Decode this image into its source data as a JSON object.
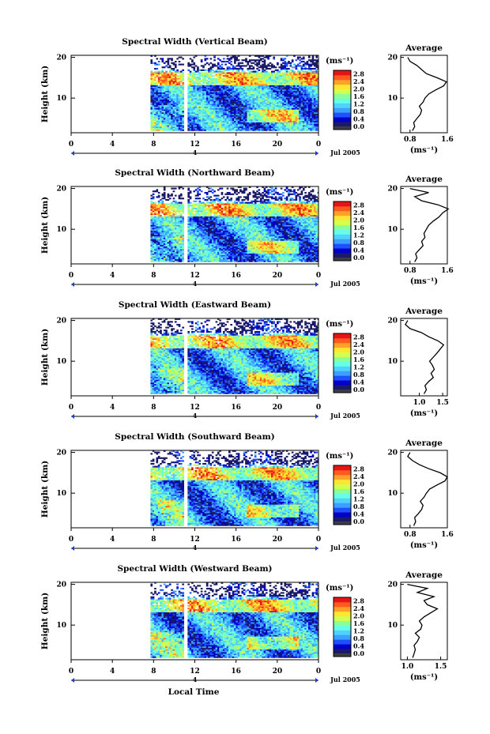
{
  "figure": {
    "x_axis_label": "Local Time",
    "date_label": "Jul 2005",
    "day_label": "4",
    "units_label": "(ms⁻¹)",
    "average_title": "Average",
    "height_label": "Height (km)"
  },
  "colors": {
    "colormap": [
      "#1a1a66",
      "#0000c8",
      "#1e50ff",
      "#3ca0ff",
      "#50d2ff",
      "#64ffe6",
      "#8cff96",
      "#d2ff50",
      "#ffe632",
      "#ffa028",
      "#ff5a1e",
      "#e61414"
    ],
    "bar_bottom": "#3c3c46",
    "day_marker": "#1e3cc8"
  },
  "chart_data": [
    {
      "type": "heatmap",
      "title": "Spectral Width (Vertical Beam)",
      "xlabel": "",
      "ylabel": "Height (km)",
      "xlim": [
        0,
        24
      ],
      "ylim": [
        1.5,
        20.5
      ],
      "x_ticks": [
        "0",
        "4",
        "8",
        "12",
        "16",
        "20",
        "0"
      ],
      "y_ticks": [
        "20",
        "10"
      ],
      "data_start_hour": 7.7,
      "data_gap_hours": [
        10.9,
        11.2
      ],
      "colorbar": {
        "label": "(ms⁻¹)",
        "ticks": [
          "0.0",
          "0.4",
          "0.8",
          "1.2",
          "1.6",
          "2.0",
          "2.4",
          "2.8"
        ],
        "range": [
          0,
          3.0
        ]
      },
      "profile": {
        "title": "Average",
        "xlim": [
          0.6,
          1.6
        ],
        "x_ticks": [
          "0.8",
          "1.6"
        ],
        "xlabel": "(ms⁻¹)",
        "heights": [
          2,
          3,
          4,
          5,
          6,
          7,
          8,
          9,
          10,
          11,
          12,
          13,
          14,
          15,
          16,
          17,
          18,
          19,
          20
        ],
        "values": [
          0.85,
          0.9,
          0.88,
          0.95,
          1.02,
          1.05,
          1.0,
          1.08,
          1.12,
          1.2,
          1.35,
          1.52,
          1.58,
          1.38,
          1.15,
          1.05,
          0.95,
          0.8,
          0.75
        ]
      }
    },
    {
      "type": "heatmap",
      "title": "Spectral Width (Northward Beam)",
      "xlabel": "",
      "ylabel": "Height (km)",
      "xlim": [
        0,
        24
      ],
      "ylim": [
        1.5,
        20.5
      ],
      "x_ticks": [
        "0",
        "4",
        "8",
        "12",
        "16",
        "20",
        "0"
      ],
      "y_ticks": [
        "20",
        "10"
      ],
      "data_start_hour": 7.7,
      "data_gap_hours": [
        10.9,
        11.2
      ],
      "colorbar": {
        "label": "(ms⁻¹)",
        "ticks": [
          "0.0",
          "0.4",
          "0.8",
          "1.2",
          "1.6",
          "2.0",
          "2.4",
          "2.8"
        ],
        "range": [
          0,
          3.0
        ]
      },
      "profile": {
        "title": "Average",
        "xlim": [
          0.6,
          1.6
        ],
        "x_ticks": [
          "0.8",
          "1.6"
        ],
        "xlabel": "(ms⁻¹)",
        "heights": [
          2,
          3,
          4,
          5,
          6,
          7,
          8,
          9,
          10,
          11,
          12,
          13,
          14,
          15,
          16,
          17,
          18,
          19,
          20
        ],
        "values": [
          0.9,
          0.95,
          0.92,
          1.0,
          1.08,
          1.05,
          1.12,
          1.1,
          1.15,
          1.2,
          1.3,
          1.42,
          1.5,
          1.62,
          1.4,
          1.05,
          0.9,
          1.2,
          0.8
        ]
      }
    },
    {
      "type": "heatmap",
      "title": "Spectral Width (Eastward Beam)",
      "xlabel": "",
      "ylabel": "Height (km)",
      "xlim": [
        0,
        24
      ],
      "ylim": [
        1.5,
        20.5
      ],
      "x_ticks": [
        "0",
        "4",
        "8",
        "12",
        "16",
        "20",
        "0"
      ],
      "y_ticks": [
        "20",
        "10"
      ],
      "data_start_hour": 7.7,
      "data_gap_hours": [
        10.9,
        11.2
      ],
      "colorbar": {
        "label": "(ms⁻¹)",
        "ticks": [
          "0.0",
          "0.4",
          "0.8",
          "1.2",
          "1.6",
          "2.0",
          "2.4",
          "2.8"
        ],
        "range": [
          0,
          3.0
        ]
      },
      "profile": {
        "title": "Average",
        "xlim": [
          0.6,
          1.6
        ],
        "x_ticks": [
          "1.0",
          "1.5"
        ],
        "xlabel": "(ms⁻¹)",
        "heights": [
          2,
          3,
          4,
          5,
          6,
          7,
          8,
          9,
          10,
          11,
          12,
          13,
          14,
          15,
          16,
          17,
          18,
          19,
          20
        ],
        "values": [
          1.1,
          1.15,
          1.12,
          1.2,
          1.3,
          1.25,
          1.32,
          1.28,
          1.22,
          1.3,
          1.38,
          1.45,
          1.52,
          1.4,
          1.2,
          1.05,
          0.8,
          0.7,
          0.75
        ]
      }
    },
    {
      "type": "heatmap",
      "title": "Spectral Width (Southward Beam)",
      "xlabel": "",
      "ylabel": "Height (km)",
      "xlim": [
        0,
        24
      ],
      "ylim": [
        1.5,
        20.5
      ],
      "x_ticks": [
        "0",
        "4",
        "8",
        "12",
        "16",
        "20",
        "0"
      ],
      "y_ticks": [
        "20",
        "10"
      ],
      "data_start_hour": 7.7,
      "data_gap_hours": [
        10.9,
        11.2
      ],
      "colorbar": {
        "label": "(ms⁻¹)",
        "ticks": [
          "0.0",
          "0.4",
          "0.8",
          "1.2",
          "1.6",
          "2.0",
          "2.4",
          "2.8"
        ],
        "range": [
          0,
          3.0
        ]
      },
      "profile": {
        "title": "Average",
        "xlim": [
          0.6,
          1.6
        ],
        "x_ticks": [
          "0.8",
          "1.6"
        ],
        "xlabel": "(ms⁻¹)",
        "heights": [
          2,
          3,
          4,
          5,
          6,
          7,
          8,
          9,
          10,
          11,
          12,
          13,
          14,
          15,
          16,
          17,
          18,
          19,
          20
        ],
        "values": [
          0.88,
          0.92,
          0.9,
          0.98,
          1.05,
          1.08,
          1.02,
          1.1,
          1.15,
          1.22,
          1.38,
          1.55,
          1.6,
          1.45,
          1.2,
          1.0,
          0.85,
          0.75,
          0.8
        ]
      }
    },
    {
      "type": "heatmap",
      "title": "Spectral Width (Westward Beam)",
      "xlabel": "Local Time",
      "ylabel": "Height (km)",
      "xlim": [
        0,
        24
      ],
      "ylim": [
        1.5,
        20.5
      ],
      "x_ticks": [
        "0",
        "4",
        "8",
        "12",
        "16",
        "20",
        "0"
      ],
      "y_ticks": [
        "20",
        "10"
      ],
      "data_start_hour": 7.7,
      "data_gap_hours": [
        10.9,
        11.2
      ],
      "colorbar": {
        "label": "(ms⁻¹)",
        "ticks": [
          "0.0",
          "0.4",
          "0.8",
          "1.2",
          "1.6",
          "2.0",
          "2.4",
          "2.8"
        ],
        "range": [
          0,
          3.0
        ]
      },
      "profile": {
        "title": "Average",
        "xlim": [
          0.9,
          1.6
        ],
        "x_ticks": [
          "1.0",
          "1.5"
        ],
        "xlabel": "(ms⁻¹)",
        "heights": [
          2,
          3,
          4,
          5,
          6,
          7,
          8,
          9,
          10,
          11,
          12,
          13,
          14,
          15,
          16,
          17,
          18,
          19,
          20
        ],
        "values": [
          1.08,
          1.1,
          1.12,
          1.1,
          1.15,
          1.18,
          1.12,
          1.2,
          1.22,
          1.18,
          1.25,
          1.35,
          1.45,
          1.3,
          1.25,
          1.4,
          1.15,
          1.3,
          1.0
        ]
      }
    }
  ]
}
